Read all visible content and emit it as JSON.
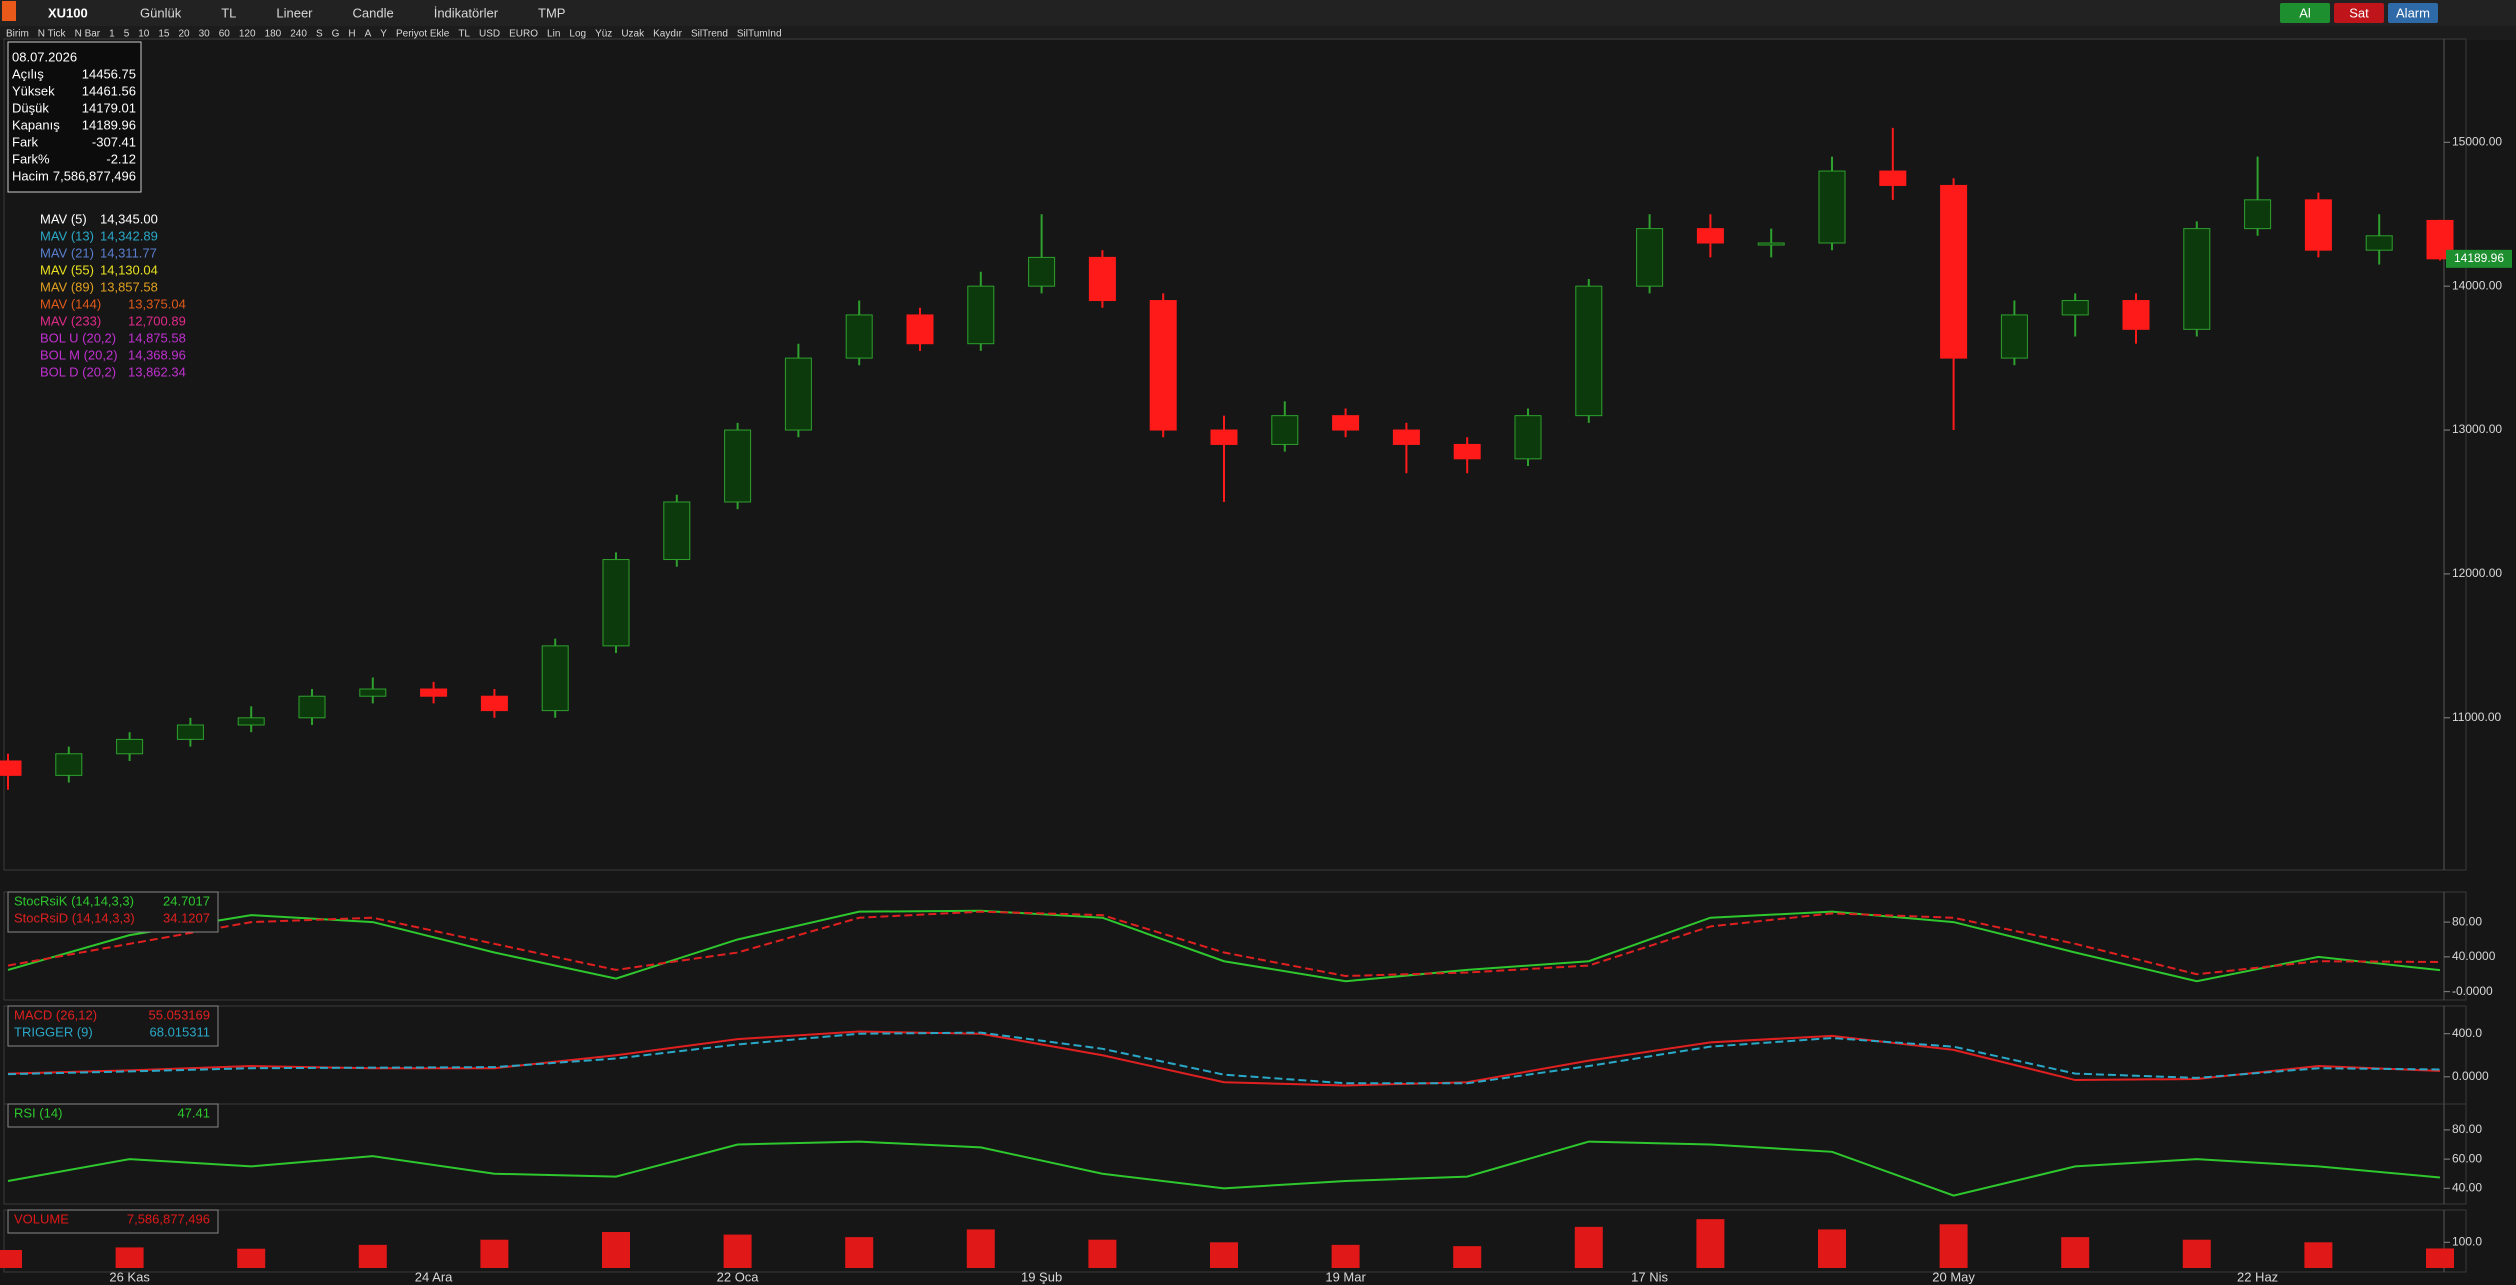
{
  "toolbar": {
    "symbol": "XU100",
    "items": [
      "Günlük",
      "TL",
      "Lineer",
      "Candle",
      "İndikatörler",
      "TMP"
    ],
    "buttons": [
      {
        "label": "Al",
        "color": "#1e8f2e"
      },
      {
        "label": "Sat",
        "color": "#c0141b"
      },
      {
        "label": "Alarm",
        "color": "#2f6aa8"
      }
    ],
    "row2": [
      "Birim",
      "N Tick",
      "N Bar",
      "1",
      "5",
      "10",
      "15",
      "20",
      "30",
      "60",
      "120",
      "180",
      "240",
      "S",
      "G",
      "H",
      "A",
      "Y",
      "Periyot Ekle",
      "TL",
      "USD",
      "EURO",
      "Lin",
      "Log",
      "Yüz",
      "Uzak",
      "Kaydır",
      "SilTrend",
      "SilTumInd"
    ]
  },
  "info": {
    "date": "08.07.2026",
    "rows": [
      [
        "Açılış",
        "14456.75"
      ],
      [
        "Yüksek",
        "14461.56"
      ],
      [
        "Düşük",
        "14179.01"
      ],
      [
        "Kapanış",
        "14189.96"
      ],
      [
        "Fark",
        "-307.41"
      ],
      [
        "Fark%",
        "-2.12"
      ],
      [
        "Hacim",
        "7,586,877,496"
      ]
    ]
  },
  "legend": [
    {
      "name": "MAV (5)",
      "value": "14,345.00",
      "color": "#ffffff"
    },
    {
      "name": "MAV (13)",
      "value": "14,342.89",
      "color": "#2aa8c8"
    },
    {
      "name": "MAV (21)",
      "value": "14,311.77",
      "color": "#5a7fd0"
    },
    {
      "name": "MAV (55)",
      "value": "14,130.04",
      "color": "#e8e020"
    },
    {
      "name": "MAV (89)",
      "value": "13,857.58",
      "color": "#e0a020"
    },
    {
      "name": "MAV (144)",
      "value": "13,375.04",
      "color": "#e05a1a"
    },
    {
      "name": "MAV (233)",
      "value": "12,700.89",
      "color": "#e02a8a"
    },
    {
      "name": "BOL U (20,2)",
      "value": "14,875.58",
      "color": "#c030d0"
    },
    {
      "name": "BOL M (20,2)",
      "value": "14,368.96",
      "color": "#c030d0"
    },
    {
      "name": "BOL D (20,2)",
      "value": "13,862.34",
      "color": "#c030d0"
    }
  ],
  "last_price": {
    "label": "14189.96",
    "color": "#1e8f2e"
  },
  "chart_data": [
    {
      "type": "candlestick",
      "categories": [
        null,
        null,
        "26 Kas",
        null,
        null,
        null,
        null,
        "24 Ara",
        null,
        null,
        null,
        null,
        "22 Oca",
        null,
        null,
        null,
        null,
        "19 Şub",
        null,
        null,
        null,
        null,
        "19 Mar",
        null,
        null,
        null,
        null,
        "17 Nis",
        null,
        null,
        null,
        null,
        "20 May",
        null,
        null,
        null,
        null,
        "22 Haz",
        null,
        null,
        null
      ],
      "open": [
        10700,
        10600,
        10750,
        10850,
        10950,
        11000,
        11150,
        11200,
        11150,
        11050,
        11500,
        12100,
        12500,
        13000,
        13500,
        13800,
        13600,
        14000,
        14200,
        13900,
        13000,
        12900,
        13100,
        13000,
        12900,
        12800,
        13100,
        14000,
        14400,
        14300,
        14300,
        14800,
        14700,
        13500,
        13800,
        13900,
        13700,
        14400,
        14600,
        14250,
        14456.75
      ],
      "high": [
        10750,
        10800,
        10900,
        11000,
        11080,
        11200,
        11280,
        11250,
        11200,
        11550,
        12150,
        12550,
        13050,
        13600,
        13900,
        13850,
        14100,
        14500,
        14250,
        13950,
        13100,
        13200,
        13150,
        13050,
        12950,
        13150,
        14050,
        14500,
        14500,
        14400,
        14900,
        15100,
        14750,
        13900,
        13950,
        13950,
        14450,
        14900,
        14650,
        14500,
        14461.56
      ],
      "low": [
        10500,
        10550,
        10700,
        10800,
        10900,
        10950,
        11100,
        11100,
        11000,
        11000,
        11450,
        12050,
        12450,
        12950,
        13450,
        13550,
        13550,
        13950,
        13850,
        12950,
        12500,
        12850,
        12950,
        12700,
        12700,
        12750,
        13050,
        13950,
        14200,
        14200,
        14250,
        14600,
        13000,
        13450,
        13650,
        13600,
        13650,
        14350,
        14200,
        14150,
        14179.01
      ],
      "close": [
        10600,
        10750,
        10850,
        10950,
        11000,
        11150,
        11200,
        11150,
        11050,
        11500,
        12100,
        12500,
        13000,
        13500,
        13800,
        13600,
        14000,
        14200,
        13900,
        13000,
        12900,
        13100,
        13000,
        12900,
        12800,
        13100,
        14000,
        14400,
        14300,
        14300,
        14800,
        14700,
        13500,
        13800,
        13900,
        13700,
        14400,
        14600,
        14250,
        14350,
        14189.96
      ],
      "up_color": "#2ea02e",
      "down_color": "#ff1a1a",
      "ylim": [
        9970,
        15690
      ],
      "yticks": [
        {
          "value": 11000,
          "label": "11000.00"
        },
        {
          "value": 12000,
          "label": "12000.00"
        },
        {
          "value": 13000,
          "label": "13000.00"
        },
        {
          "value": 14000,
          "label": "14000.00"
        },
        {
          "value": 15000,
          "label": "15000.00"
        }
      ]
    },
    {
      "type": "line",
      "series": [
        {
          "name": "StocRsiK (14,14,3,3)",
          "value_label": "24.7017",
          "color": "#2ec82e",
          "values": [
            25,
            65,
            88,
            80,
            45,
            15,
            60,
            92,
            93,
            85,
            35,
            12,
            25,
            35,
            85,
            92,
            80,
            45,
            12,
            40,
            24.7017
          ]
        },
        {
          "name": "StocRsiD (14,14,3,3)",
          "value_label": "34.1207",
          "color": "#e02020",
          "values": [
            30,
            55,
            80,
            85,
            55,
            25,
            45,
            85,
            92,
            88,
            45,
            18,
            22,
            30,
            75,
            90,
            85,
            55,
            20,
            35,
            34.1207
          ]
        }
      ],
      "ylim": [
        -5,
        110
      ],
      "yticks": [
        {
          "value": 0,
          "label": "-0.0000"
        },
        {
          "value": 40,
          "label": "40.0000"
        },
        {
          "value": 80,
          "label": "80.00"
        }
      ]
    },
    {
      "type": "line",
      "series": [
        {
          "name": "MACD (26,12)",
          "value_label": "55.053169",
          "color": "#e02020",
          "values": [
            30,
            60,
            100,
            80,
            80,
            200,
            350,
            420,
            400,
            200,
            -50,
            -80,
            -50,
            150,
            320,
            380,
            250,
            -30,
            -20,
            100,
            55.053169
          ]
        },
        {
          "name": "TRIGGER (9)",
          "value_label": "68.015311",
          "color": "#2aa8c8",
          "values": [
            25,
            50,
            80,
            85,
            90,
            170,
            300,
            400,
            410,
            260,
            20,
            -60,
            -60,
            100,
            280,
            360,
            280,
            30,
            -10,
            80,
            68.015311
          ]
        }
      ],
      "ylim": [
        -215,
        620
      ],
      "yticks": [
        {
          "value": 0,
          "label": "0.0000"
        },
        {
          "value": 400,
          "label": "400.0"
        }
      ]
    },
    {
      "type": "line",
      "series": [
        {
          "name": "RSI (14)",
          "value_label": "47.41",
          "color": "#2ec82e",
          "values": [
            45,
            60,
            55,
            62,
            50,
            48,
            70,
            72,
            68,
            50,
            40,
            45,
            48,
            72,
            70,
            65,
            35,
            55,
            60,
            55,
            47.41
          ]
        }
      ],
      "ylim": [
        32,
        95
      ],
      "yticks": [
        {
          "value": 40,
          "label": "40.00"
        },
        {
          "value": 60,
          "label": "60.00"
        },
        {
          "value": 80,
          "label": "80.00"
        }
      ]
    },
    {
      "type": "bar",
      "series": [
        {
          "name": "VOLUME",
          "value_label": "7,586,877,496",
          "color": "#e01818",
          "values": [
            70,
            80,
            75,
            90,
            110,
            140,
            130,
            120,
            150,
            110,
            100,
            90,
            85,
            160,
            190,
            150,
            170,
            120,
            110,
            100,
            76
          ]
        }
      ],
      "ylim": [
        0,
        210
      ],
      "yticks": [
        {
          "value": 100,
          "label": "100.0"
        }
      ]
    }
  ]
}
